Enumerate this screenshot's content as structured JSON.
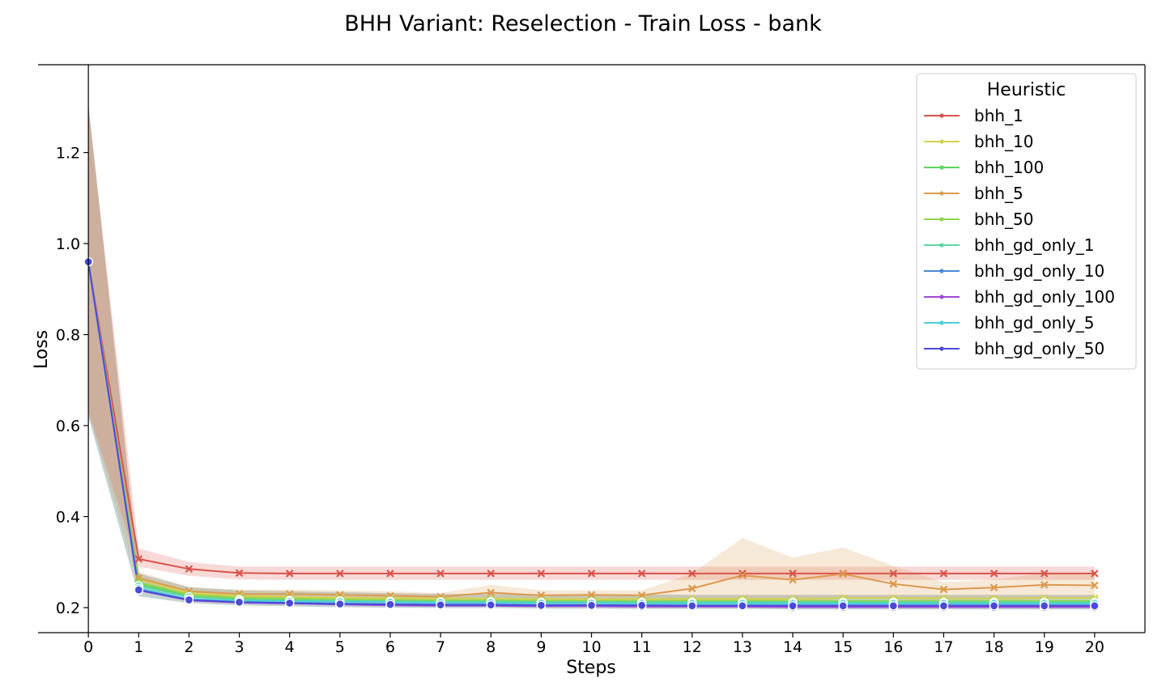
{
  "chart_data": {
    "type": "line",
    "title": "BHH Variant: Reselection - Train Loss - bank",
    "xlabel": "Steps",
    "ylabel": "Loss",
    "xlim": [
      -1,
      21
    ],
    "ylim": [
      0.145,
      1.393
    ],
    "x": [
      0,
      1,
      2,
      3,
      4,
      5,
      6,
      7,
      8,
      9,
      10,
      11,
      12,
      13,
      14,
      15,
      16,
      17,
      18,
      19,
      20
    ],
    "xticks": [
      "0",
      "1",
      "2",
      "3",
      "4",
      "5",
      "6",
      "7",
      "8",
      "9",
      "10",
      "11",
      "12",
      "13",
      "14",
      "15",
      "16",
      "17",
      "18",
      "19",
      "20"
    ],
    "yticks": [
      {
        "v": 0.2,
        "label": "0.2"
      },
      {
        "v": 0.4,
        "label": "0.4"
      },
      {
        "v": 0.6,
        "label": "0.6"
      },
      {
        "v": 0.8,
        "label": "0.8"
      },
      {
        "v": 1.0,
        "label": "1.0"
      },
      {
        "v": 1.2,
        "label": "1.2"
      }
    ],
    "legend": {
      "title": "Heuristic",
      "position": "top-right"
    },
    "grid": false,
    "series": [
      {
        "name": "bhh_1",
        "color": "#d9534a",
        "marker": "x",
        "values": [
          0.96,
          0.307,
          0.285,
          0.276,
          0.275,
          0.275,
          0.275,
          0.275,
          0.275,
          0.275,
          0.275,
          0.275,
          0.275,
          0.275,
          0.275,
          0.275,
          0.275,
          0.275,
          0.275,
          0.275,
          0.275
        ],
        "band_lower": [
          0.63,
          0.29,
          0.27,
          0.262,
          0.261,
          0.261,
          0.261,
          0.261,
          0.261,
          0.261,
          0.261,
          0.261,
          0.261,
          0.261,
          0.261,
          0.261,
          0.261,
          0.261,
          0.261,
          0.261,
          0.261
        ],
        "band_upper": [
          1.3,
          0.33,
          0.3,
          0.29,
          0.29,
          0.29,
          0.29,
          0.29,
          0.29,
          0.29,
          0.29,
          0.29,
          0.29,
          0.29,
          0.29,
          0.29,
          0.29,
          0.29,
          0.29,
          0.29,
          0.29
        ]
      },
      {
        "name": "bhh_10",
        "color": "#d4d24a",
        "marker": "x",
        "values": [
          0.96,
          0.263,
          0.232,
          0.226,
          0.224,
          0.222,
          0.221,
          0.22,
          0.22,
          0.219,
          0.219,
          0.219,
          0.219,
          0.219,
          0.219,
          0.221,
          0.221,
          0.22,
          0.22,
          0.221,
          0.221
        ]
      },
      {
        "name": "bhh_100",
        "color": "#5cd65c",
        "marker": "x",
        "values": [
          0.96,
          0.252,
          0.226,
          0.22,
          0.218,
          0.216,
          0.215,
          0.214,
          0.213,
          0.213,
          0.213,
          0.213,
          0.212,
          0.212,
          0.212,
          0.212,
          0.212,
          0.212,
          0.212,
          0.212,
          0.212
        ]
      },
      {
        "name": "bhh_5",
        "color": "#dc9a4e",
        "marker": "x",
        "values": [
          0.96,
          0.265,
          0.236,
          0.23,
          0.23,
          0.228,
          0.226,
          0.224,
          0.233,
          0.227,
          0.228,
          0.227,
          0.242,
          0.271,
          0.261,
          0.274,
          0.252,
          0.24,
          0.244,
          0.25,
          0.249
        ],
        "band_lower": [
          0.63,
          0.25,
          0.225,
          0.22,
          0.22,
          0.22,
          0.218,
          0.218,
          0.218,
          0.218,
          0.218,
          0.218,
          0.218,
          0.22,
          0.218,
          0.222,
          0.22,
          0.22,
          0.222,
          0.222,
          0.222
        ],
        "band_upper": [
          1.3,
          0.28,
          0.245,
          0.24,
          0.24,
          0.238,
          0.236,
          0.232,
          0.25,
          0.238,
          0.238,
          0.238,
          0.275,
          0.353,
          0.31,
          0.332,
          0.292,
          0.256,
          0.262,
          0.276,
          0.272
        ]
      },
      {
        "name": "bhh_50",
        "color": "#8fd64a",
        "marker": "x",
        "values": [
          0.96,
          0.256,
          0.228,
          0.222,
          0.22,
          0.218,
          0.217,
          0.216,
          0.216,
          0.215,
          0.215,
          0.215,
          0.215,
          0.215,
          0.215,
          0.215,
          0.215,
          0.215,
          0.215,
          0.215,
          0.215
        ]
      },
      {
        "name": "bhh_gd_only_1",
        "color": "#5cd6a3",
        "marker": "o",
        "values": [
          0.96,
          0.248,
          0.224,
          0.218,
          0.216,
          0.215,
          0.214,
          0.213,
          0.213,
          0.212,
          0.212,
          0.212,
          0.212,
          0.212,
          0.212,
          0.212,
          0.212,
          0.212,
          0.212,
          0.212,
          0.212
        ]
      },
      {
        "name": "bhh_gd_only_10",
        "color": "#4a8ad9",
        "marker": "o",
        "values": [
          0.96,
          0.24,
          0.218,
          0.213,
          0.211,
          0.209,
          0.208,
          0.207,
          0.207,
          0.206,
          0.206,
          0.205,
          0.205,
          0.205,
          0.205,
          0.205,
          0.205,
          0.205,
          0.205,
          0.205,
          0.205
        ]
      },
      {
        "name": "bhh_gd_only_100",
        "color": "#a04ad9",
        "marker": "o",
        "values": [
          0.96,
          0.238,
          0.216,
          0.211,
          0.209,
          0.207,
          0.205,
          0.204,
          0.204,
          0.203,
          0.203,
          0.202,
          0.202,
          0.202,
          0.201,
          0.201,
          0.201,
          0.201,
          0.201,
          0.201,
          0.201
        ]
      },
      {
        "name": "bhh_gd_only_5",
        "color": "#4ad0d6",
        "marker": "o",
        "values": [
          0.96,
          0.243,
          0.219,
          0.215,
          0.214,
          0.213,
          0.212,
          0.211,
          0.211,
          0.21,
          0.21,
          0.209,
          0.209,
          0.209,
          0.209,
          0.209,
          0.209,
          0.209,
          0.209,
          0.209,
          0.209
        ]
      },
      {
        "name": "bhh_gd_only_50",
        "color": "#4a4ad9",
        "marker": "o",
        "values": [
          0.96,
          0.239,
          0.217,
          0.212,
          0.21,
          0.208,
          0.207,
          0.206,
          0.206,
          0.205,
          0.205,
          0.205,
          0.204,
          0.204,
          0.204,
          0.204,
          0.204,
          0.204,
          0.204,
          0.204,
          0.204
        ]
      }
    ],
    "shared_band": {
      "color": "#7a9e9e",
      "lower": [
        0.62,
        0.225,
        0.21,
        0.205,
        0.203,
        0.201,
        0.2,
        0.199,
        0.199,
        0.198,
        0.198,
        0.197,
        0.197,
        0.197,
        0.196,
        0.196,
        0.196,
        0.196,
        0.196,
        0.196,
        0.196
      ],
      "upper": [
        1.31,
        0.275,
        0.245,
        0.238,
        0.236,
        0.234,
        0.232,
        0.23,
        0.23,
        0.229,
        0.229,
        0.229,
        0.228,
        0.228,
        0.228,
        0.228,
        0.228,
        0.228,
        0.228,
        0.228,
        0.228
      ]
    }
  }
}
